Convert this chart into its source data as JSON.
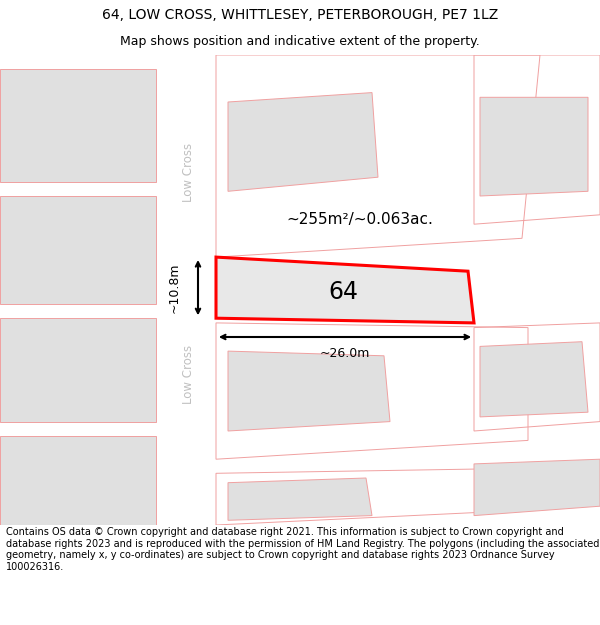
{
  "title": "64, LOW CROSS, WHITTLESEY, PETERBOROUGH, PE7 1LZ",
  "subtitle": "Map shows position and indicative extent of the property.",
  "footer": "Contains OS data © Crown copyright and database right 2021. This information is subject to Crown copyright and database rights 2023 and is reproduced with the permission of HM Land Registry. The polygons (including the associated geometry, namely x, y co-ordinates) are subject to Crown copyright and database rights 2023 Ordnance Survey 100026316.",
  "bg_color": "#ffffff",
  "map_bg": "#f2f2f2",
  "map_area_color": "#e0e0e0",
  "road_color": "#ffffff",
  "plot_outline_color": "#ff0000",
  "plot_fill_color": "#e8e8e8",
  "neighbor_outline_color": "#f0a0a0",
  "area_text": "~255m²/~0.063ac.",
  "width_text": "~26.0m",
  "height_text": "~10.8m",
  "plot_number": "64",
  "road_label": "Low Cross",
  "title_fontsize": 10,
  "subtitle_fontsize": 9,
  "footer_fontsize": 7
}
